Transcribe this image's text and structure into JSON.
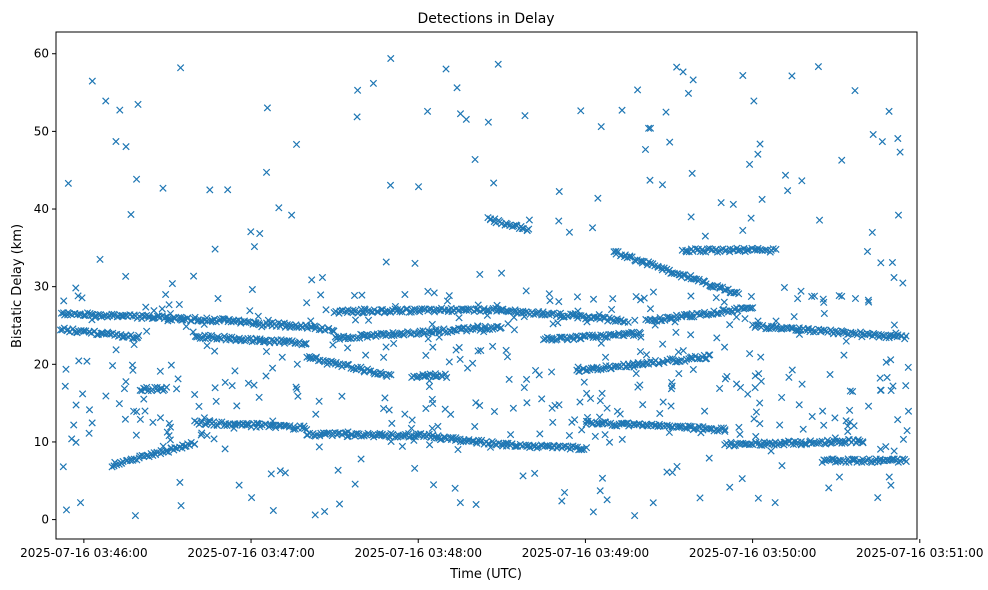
{
  "chart_data": {
    "type": "scatter",
    "title": "Detections in Delay",
    "xlabel": "Time (UTC)",
    "ylabel": "Bistatic Delay (km)",
    "marker": "x",
    "series_color": "#1f77b4",
    "x_unit": "seconds since 2025-07-16 03:45:00",
    "xlim": [
      50.0,
      359.0
    ],
    "ylim": [
      -2.5,
      62.8
    ],
    "x_ticks": [
      {
        "value": 60,
        "label": "2025-07-16 03:46:00"
      },
      {
        "value": 120,
        "label": "2025-07-16 03:47:00"
      },
      {
        "value": 180,
        "label": "2025-07-16 03:48:00"
      },
      {
        "value": 240,
        "label": "2025-07-16 03:49:00"
      },
      {
        "value": 300,
        "label": "2025-07-16 03:50:00"
      },
      {
        "value": 360,
        "label": "2025-07-16 03:51:00"
      }
    ],
    "y_ticks": [
      {
        "value": 0,
        "label": "0"
      },
      {
        "value": 10,
        "label": "10"
      },
      {
        "value": 20,
        "label": "20"
      },
      {
        "value": 30,
        "label": "30"
      },
      {
        "value": 40,
        "label": "40"
      },
      {
        "value": 50,
        "label": "50"
      },
      {
        "value": 60,
        "label": "60"
      }
    ],
    "tracks": [
      {
        "t_start": 52,
        "t_end": 114,
        "d_start": 26.6,
        "d_end": 25.6
      },
      {
        "t_start": 114,
        "t_end": 150,
        "d_start": 25.6,
        "d_end": 24.5
      },
      {
        "t_start": 150,
        "t_end": 210,
        "d_start": 26.8,
        "d_end": 27.1
      },
      {
        "t_start": 210,
        "t_end": 255,
        "d_start": 27.0,
        "d_end": 25.6
      },
      {
        "t_start": 262,
        "t_end": 300,
        "d_start": 25.6,
        "d_end": 27.3
      },
      {
        "t_start": 300,
        "t_end": 355,
        "d_start": 24.9,
        "d_end": 23.5
      },
      {
        "t_start": 52,
        "t_end": 80,
        "d_start": 24.5,
        "d_end": 23.5
      },
      {
        "t_start": 100,
        "t_end": 140,
        "d_start": 23.6,
        "d_end": 22.7
      },
      {
        "t_start": 150,
        "t_end": 210,
        "d_start": 23.4,
        "d_end": 24.8
      },
      {
        "t_start": 225,
        "t_end": 260,
        "d_start": 23.2,
        "d_end": 24.0
      },
      {
        "t_start": 140,
        "t_end": 170,
        "d_start": 21.0,
        "d_end": 18.5
      },
      {
        "t_start": 237,
        "t_end": 285,
        "d_start": 19.2,
        "d_end": 21.0
      },
      {
        "t_start": 250,
        "t_end": 295,
        "d_start": 34.5,
        "d_end": 29.0
      },
      {
        "t_start": 275,
        "t_end": 308,
        "d_start": 34.7,
        "d_end": 34.7
      },
      {
        "t_start": 100,
        "t_end": 140,
        "d_start": 12.5,
        "d_end": 11.8
      },
      {
        "t_start": 140,
        "t_end": 180,
        "d_start": 11.0,
        "d_end": 10.8
      },
      {
        "t_start": 180,
        "t_end": 212,
        "d_start": 10.9,
        "d_end": 9.6
      },
      {
        "t_start": 212,
        "t_end": 240,
        "d_start": 9.6,
        "d_end": 9.2
      },
      {
        "t_start": 240,
        "t_end": 290,
        "d_start": 12.5,
        "d_end": 11.6
      },
      {
        "t_start": 290,
        "t_end": 340,
        "d_start": 9.7,
        "d_end": 10.1
      },
      {
        "t_start": 70,
        "t_end": 100,
        "d_start": 7.0,
        "d_end": 9.8
      },
      {
        "t_start": 80,
        "t_end": 90,
        "d_start": 16.8,
        "d_end": 16.8
      },
      {
        "t_start": 178,
        "t_end": 190,
        "d_start": 18.5,
        "d_end": 18.5
      },
      {
        "t_start": 205,
        "t_end": 220,
        "d_start": 38.8,
        "d_end": 37.2
      },
      {
        "t_start": 325,
        "t_end": 355,
        "d_start": 7.6,
        "d_end": 7.6
      }
    ],
    "scatter_ranges": {
      "n_background": 520,
      "t_range": [
        52,
        356
      ],
      "d_range": [
        0.5,
        59.8
      ],
      "dense_band": [
        9,
        30
      ]
    }
  }
}
